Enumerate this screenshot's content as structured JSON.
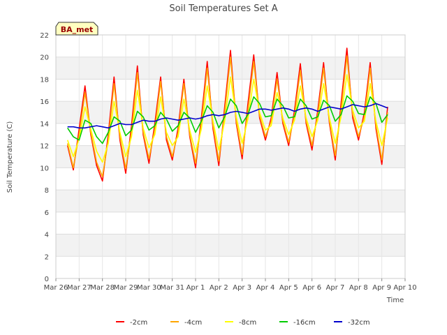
{
  "chart_data": {
    "type": "line",
    "title": "Soil Temperatures Set A",
    "xlabel": "Time",
    "ylabel": "Soil Temperature (C)",
    "badge": "BA_met",
    "x_ticks": [
      "Mar 26",
      "Mar 27",
      "Mar 28",
      "Mar 29",
      "Mar 30",
      "Mar 31",
      "Apr 1",
      "Apr 2",
      "Apr 3",
      "Apr 4",
      "Apr 5",
      "Apr 6",
      "Apr 7",
      "Apr 8",
      "Apr 9",
      "Apr 10"
    ],
    "xlim": [
      "Mar 26",
      "Apr 10"
    ],
    "ylim": [
      0,
      22
    ],
    "y_ticks": [
      0,
      2,
      4,
      6,
      8,
      10,
      12,
      14,
      16,
      18,
      20,
      22
    ],
    "grid": true,
    "legend_position": "bottom",
    "x": [
      "Mar 26 12:00",
      "Mar 26 18:00",
      "Mar 27 00:00",
      "Mar 27 06:00",
      "Mar 27 12:00",
      "Mar 27 18:00",
      "Mar 28 00:00",
      "Mar 28 06:00",
      "Mar 28 12:00",
      "Mar 28 18:00",
      "Mar 29 00:00",
      "Mar 29 06:00",
      "Mar 29 12:00",
      "Mar 29 18:00",
      "Mar 30 00:00",
      "Mar 30 06:00",
      "Mar 30 12:00",
      "Mar 30 18:00",
      "Mar 31 00:00",
      "Mar 31 06:00",
      "Mar 31 12:00",
      "Mar 31 18:00",
      "Apr 1 00:00",
      "Apr 1 06:00",
      "Apr 1 12:00",
      "Apr 1 18:00",
      "Apr 2 00:00",
      "Apr 2 06:00",
      "Apr 2 12:00",
      "Apr 2 18:00",
      "Apr 3 00:00",
      "Apr 3 06:00",
      "Apr 3 12:00",
      "Apr 3 18:00",
      "Apr 4 00:00",
      "Apr 4 06:00",
      "Apr 4 12:00",
      "Apr 4 18:00",
      "Apr 5 00:00",
      "Apr 5 06:00",
      "Apr 5 12:00",
      "Apr 5 18:00",
      "Apr 6 00:00",
      "Apr 6 06:00",
      "Apr 6 12:00",
      "Apr 6 18:00",
      "Apr 7 00:00",
      "Apr 7 06:00",
      "Apr 7 12:00",
      "Apr 7 18:00",
      "Apr 8 00:00",
      "Apr 8 06:00",
      "Apr 8 12:00",
      "Apr 8 18:00",
      "Apr 9 00:00",
      "Apr 9 06:00"
    ],
    "series": [
      {
        "name": "-2cm",
        "color": "#ff0000",
        "values": [
          12.0,
          9.8,
          13.5,
          17.4,
          13.0,
          10.2,
          8.8,
          13.0,
          18.2,
          12.5,
          9.5,
          13.8,
          19.2,
          13.0,
          10.4,
          14.0,
          18.2,
          12.5,
          10.7,
          13.6,
          18.0,
          12.8,
          10.0,
          14.5,
          19.6,
          13.5,
          10.2,
          15.5,
          20.6,
          14.0,
          10.8,
          15.8,
          20.2,
          14.5,
          12.5,
          14.5,
          18.6,
          14.0,
          12.0,
          15.2,
          19.4,
          14.0,
          11.6,
          15.2,
          19.5,
          14.0,
          10.7,
          15.8,
          20.8,
          14.5,
          12.5,
          15.0,
          19.5,
          13.5,
          10.3,
          15.5
        ]
      },
      {
        "name": "-4cm",
        "color": "#ffa500",
        "values": [
          12.2,
          10.0,
          13.0,
          16.8,
          13.2,
          10.5,
          9.2,
          12.5,
          17.6,
          12.8,
          9.9,
          13.2,
          18.6,
          13.2,
          10.8,
          13.5,
          17.8,
          12.8,
          11.0,
          13.2,
          17.6,
          13.0,
          10.4,
          14.0,
          19.0,
          13.8,
          10.6,
          15.0,
          20.0,
          14.2,
          11.2,
          15.2,
          19.6,
          14.7,
          12.8,
          14.2,
          18.0,
          14.2,
          12.3,
          14.8,
          18.8,
          14.2,
          12.0,
          14.8,
          19.0,
          14.2,
          11.1,
          15.2,
          20.1,
          14.8,
          12.8,
          14.6,
          19.0,
          13.8,
          10.7,
          15.0
        ]
      },
      {
        "name": "-8cm",
        "color": "#ffff00",
        "values": [
          12.5,
          11.0,
          12.6,
          15.5,
          13.5,
          11.5,
          10.5,
          12.2,
          16.0,
          13.2,
          11.0,
          12.8,
          17.0,
          13.6,
          11.8,
          13.0,
          16.4,
          13.2,
          12.0,
          12.8,
          16.2,
          13.4,
          11.4,
          13.5,
          17.4,
          14.2,
          11.6,
          14.2,
          18.2,
          14.6,
          12.2,
          14.4,
          18.0,
          15.0,
          13.4,
          13.8,
          16.8,
          14.5,
          13.0,
          14.3,
          17.4,
          14.5,
          12.8,
          14.3,
          17.6,
          14.5,
          12.2,
          14.6,
          18.4,
          15.2,
          13.6,
          14.2,
          17.6,
          14.2,
          12.0,
          14.5
        ]
      },
      {
        "name": "-16cm",
        "color": "#00cc00",
        "values": [
          13.6,
          12.8,
          12.5,
          14.3,
          14.0,
          12.8,
          12.2,
          13.2,
          14.6,
          14.2,
          12.9,
          13.4,
          15.1,
          14.6,
          13.4,
          13.8,
          15.0,
          14.4,
          13.3,
          13.8,
          15.0,
          14.5,
          13.2,
          14.2,
          15.6,
          15.0,
          13.6,
          14.6,
          16.2,
          15.6,
          14.0,
          14.8,
          16.4,
          15.8,
          14.6,
          14.7,
          16.2,
          15.6,
          14.5,
          14.6,
          16.2,
          15.6,
          14.4,
          14.6,
          16.1,
          15.6,
          14.2,
          14.8,
          16.5,
          16.0,
          14.9,
          14.8,
          16.4,
          15.8,
          14.1,
          14.8
        ]
      },
      {
        "name": "-32cm",
        "color": "#0000cc",
        "values": [
          13.7,
          13.7,
          13.6,
          13.6,
          13.7,
          13.8,
          13.7,
          13.6,
          13.8,
          14.0,
          13.9,
          13.9,
          14.1,
          14.3,
          14.2,
          14.2,
          14.4,
          14.5,
          14.4,
          14.3,
          14.4,
          14.5,
          14.4,
          14.5,
          14.7,
          14.8,
          14.7,
          14.8,
          15.0,
          15.1,
          15.0,
          14.9,
          15.1,
          15.3,
          15.3,
          15.2,
          15.3,
          15.4,
          15.3,
          15.1,
          15.3,
          15.4,
          15.3,
          15.1,
          15.3,
          15.5,
          15.4,
          15.3,
          15.5,
          15.7,
          15.6,
          15.5,
          15.6,
          15.8,
          15.6,
          15.4
        ]
      }
    ]
  }
}
